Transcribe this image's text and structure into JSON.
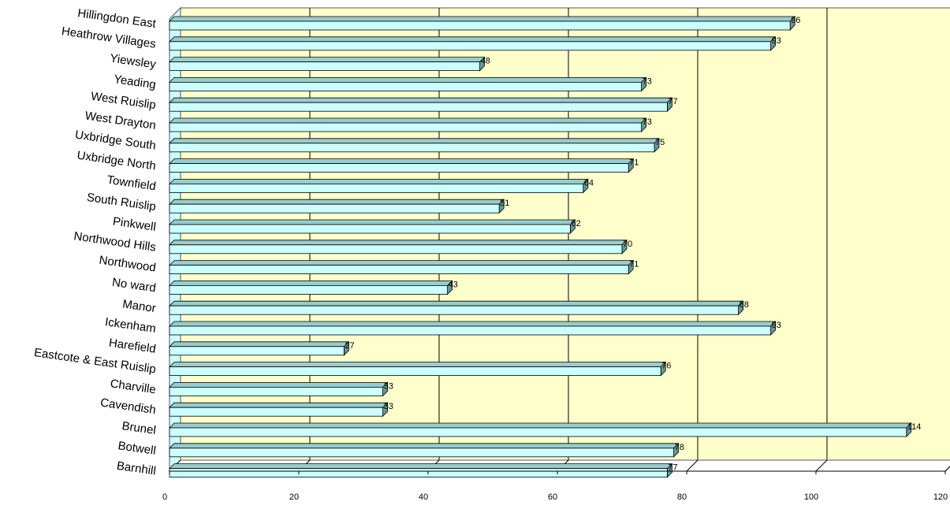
{
  "chart_data": {
    "type": "bar",
    "orientation": "horizontal",
    "style": "3d",
    "title": "",
    "xlabel": "",
    "ylabel": "",
    "categories": [
      "Hillingdon East",
      "Heathrow Villages",
      "Yiewsley",
      "Yeading",
      "West Ruislip",
      "West Drayton",
      "Uxbridge South",
      "Uxbridge North",
      "Townfield",
      "South Ruislip",
      "Pinkwell",
      "Northwood Hills",
      "Northwood",
      "No ward",
      "Manor",
      "Ickenham",
      "Harefield",
      "Eastcote & East Ruislip",
      "Charville",
      "Cavendish",
      "Brunel",
      "Botwell",
      "Barnhill"
    ],
    "values": [
      96,
      93,
      48,
      73,
      77,
      73,
      75,
      71,
      64,
      51,
      62,
      70,
      71,
      43,
      88,
      93,
      27,
      76,
      33,
      33,
      114,
      78,
      77
    ],
    "data_labels": [
      "96",
      "93",
      "48",
      "73",
      "77",
      "73",
      "75",
      "71",
      "64",
      "51",
      "62",
      "70",
      "71",
      "43",
      "88",
      "93",
      "27",
      "76",
      "33",
      "33",
      "114",
      "78",
      "77"
    ],
    "xlim": [
      0,
      120
    ],
    "xticks": [
      0,
      20,
      40,
      60,
      80,
      100,
      120
    ],
    "xtick_labels": [
      "0",
      "20",
      "40",
      "60",
      "80",
      "100",
      "120"
    ],
    "grid": "vertical",
    "legend": "none",
    "colors": {
      "bar_front": "#ccffff",
      "bar_top": "#99cccc",
      "bar_side": "#669999",
      "bar_outline": "#000000",
      "wall_back": "#ffffcc",
      "wall_left": "#ccffff",
      "gridline": "#000000"
    }
  }
}
